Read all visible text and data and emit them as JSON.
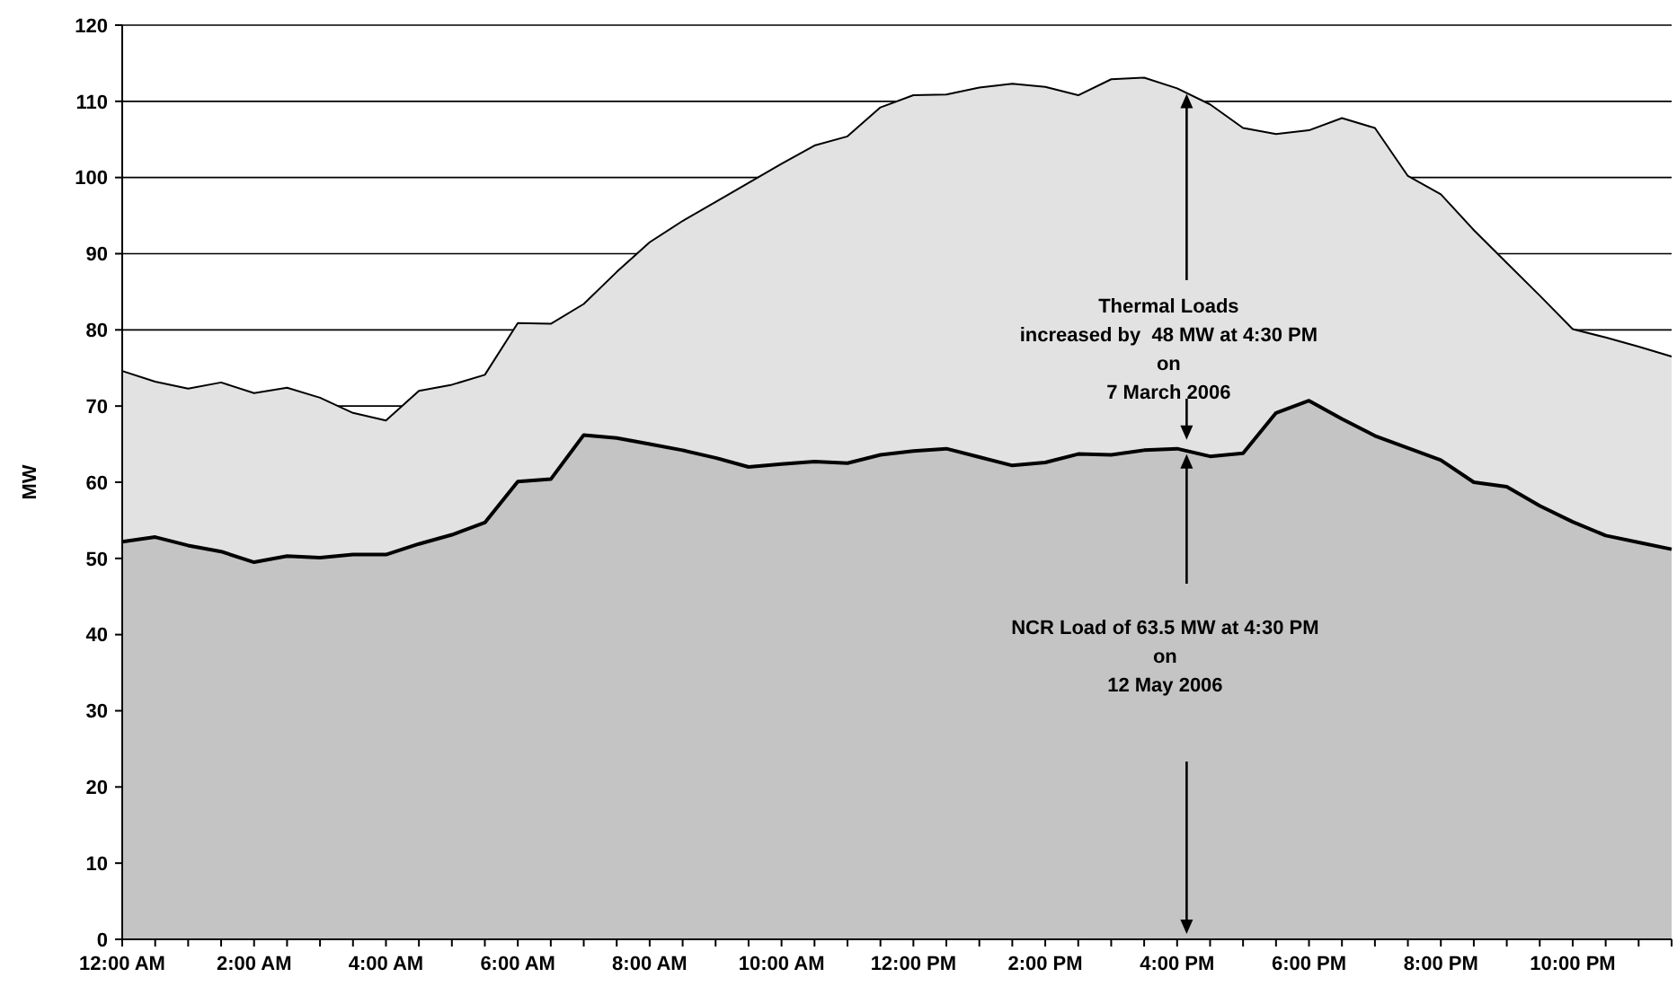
{
  "chart_data": {
    "type": "area",
    "ylabel": "MW",
    "categories": [
      "12:00 AM",
      null,
      null,
      null,
      "2:00 AM",
      null,
      null,
      null,
      "4:00 AM",
      null,
      null,
      null,
      "6:00 AM",
      null,
      null,
      null,
      "8:00 AM",
      null,
      null,
      null,
      "10:00 AM",
      null,
      null,
      null,
      "12:00 PM",
      null,
      null,
      null,
      "2:00 PM",
      null,
      null,
      null,
      "4:00 PM",
      null,
      null,
      null,
      "6:00 PM",
      null,
      null,
      null,
      "8:00 PM",
      null,
      null,
      null,
      "10:00 PM",
      null,
      null,
      null
    ],
    "series": [
      {
        "color": "#e2e2e2",
        "values": [
          74.6,
          73.2,
          72.3,
          73.1,
          71.7,
          72.4,
          71.1,
          69.1,
          68.1,
          72.0,
          72.8,
          74.1,
          80.9,
          80.8,
          83.4,
          87.6,
          91.5,
          94.3,
          96.8,
          99.3,
          101.8,
          104.2,
          105.4,
          109.2,
          110.8,
          110.9,
          111.8,
          112.3,
          111.9,
          110.8,
          112.9,
          113.1,
          111.7,
          109.6,
          106.5,
          105.7,
          106.2,
          107.8,
          106.5,
          100.2,
          97.8,
          93.1,
          88.8,
          84.5,
          80.1,
          79.0,
          77.8,
          76.5
        ]
      },
      {
        "color": "#c4c4c4",
        "values": [
          52.2,
          52.8,
          51.7,
          50.9,
          49.5,
          50.3,
          50.1,
          50.5,
          50.5,
          51.9,
          53.1,
          54.7,
          60.1,
          60.4,
          66.2,
          65.8,
          65.0,
          64.2,
          63.2,
          62.0,
          62.4,
          62.7,
          62.5,
          63.6,
          64.1,
          64.4,
          63.3,
          62.2,
          62.6,
          63.7,
          63.6,
          64.2,
          64.4,
          63.4,
          63.8,
          69.1,
          70.7,
          68.3,
          66.1,
          64.5,
          62.9,
          60.0,
          59.4,
          56.9,
          54.8,
          53.0,
          52.1,
          51.2
        ]
      }
    ],
    "ylim": [
      0,
      120
    ],
    "yticks": [
      0,
      10,
      20,
      30,
      40,
      50,
      60,
      70,
      80,
      90,
      100,
      110,
      120
    ],
    "grid": "y",
    "annotations": [
      "Thermal Loads\nincreased by  48 MW at 4:30 PM\non\n7 March 2006",
      "NCR Load of 63.5 MW at 4:30 PM\non\n12 May 2006"
    ]
  }
}
